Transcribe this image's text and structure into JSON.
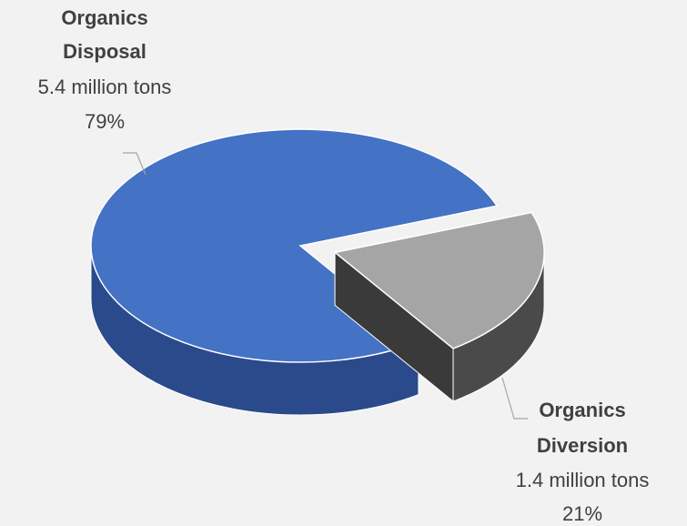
{
  "chart_data": {
    "type": "pie",
    "style": "3d-exploded",
    "slices": [
      {
        "name_line1": "Organics",
        "name_line2": "Disposal",
        "value": 5.4,
        "value_label": "5.4 million tons",
        "percent": 79,
        "percent_label": "79%",
        "color": "#4472c4",
        "side_color": "#2a4a8c"
      },
      {
        "name_line1": "Organics",
        "name_line2": "Diversion",
        "value": 1.4,
        "value_label": "1.4 million tons",
        "percent": 21,
        "percent_label": "21%",
        "color": "#a5a5a5",
        "side_color": "#4a4a4a",
        "exploded": true
      }
    ],
    "legend": "none",
    "grid": false
  }
}
